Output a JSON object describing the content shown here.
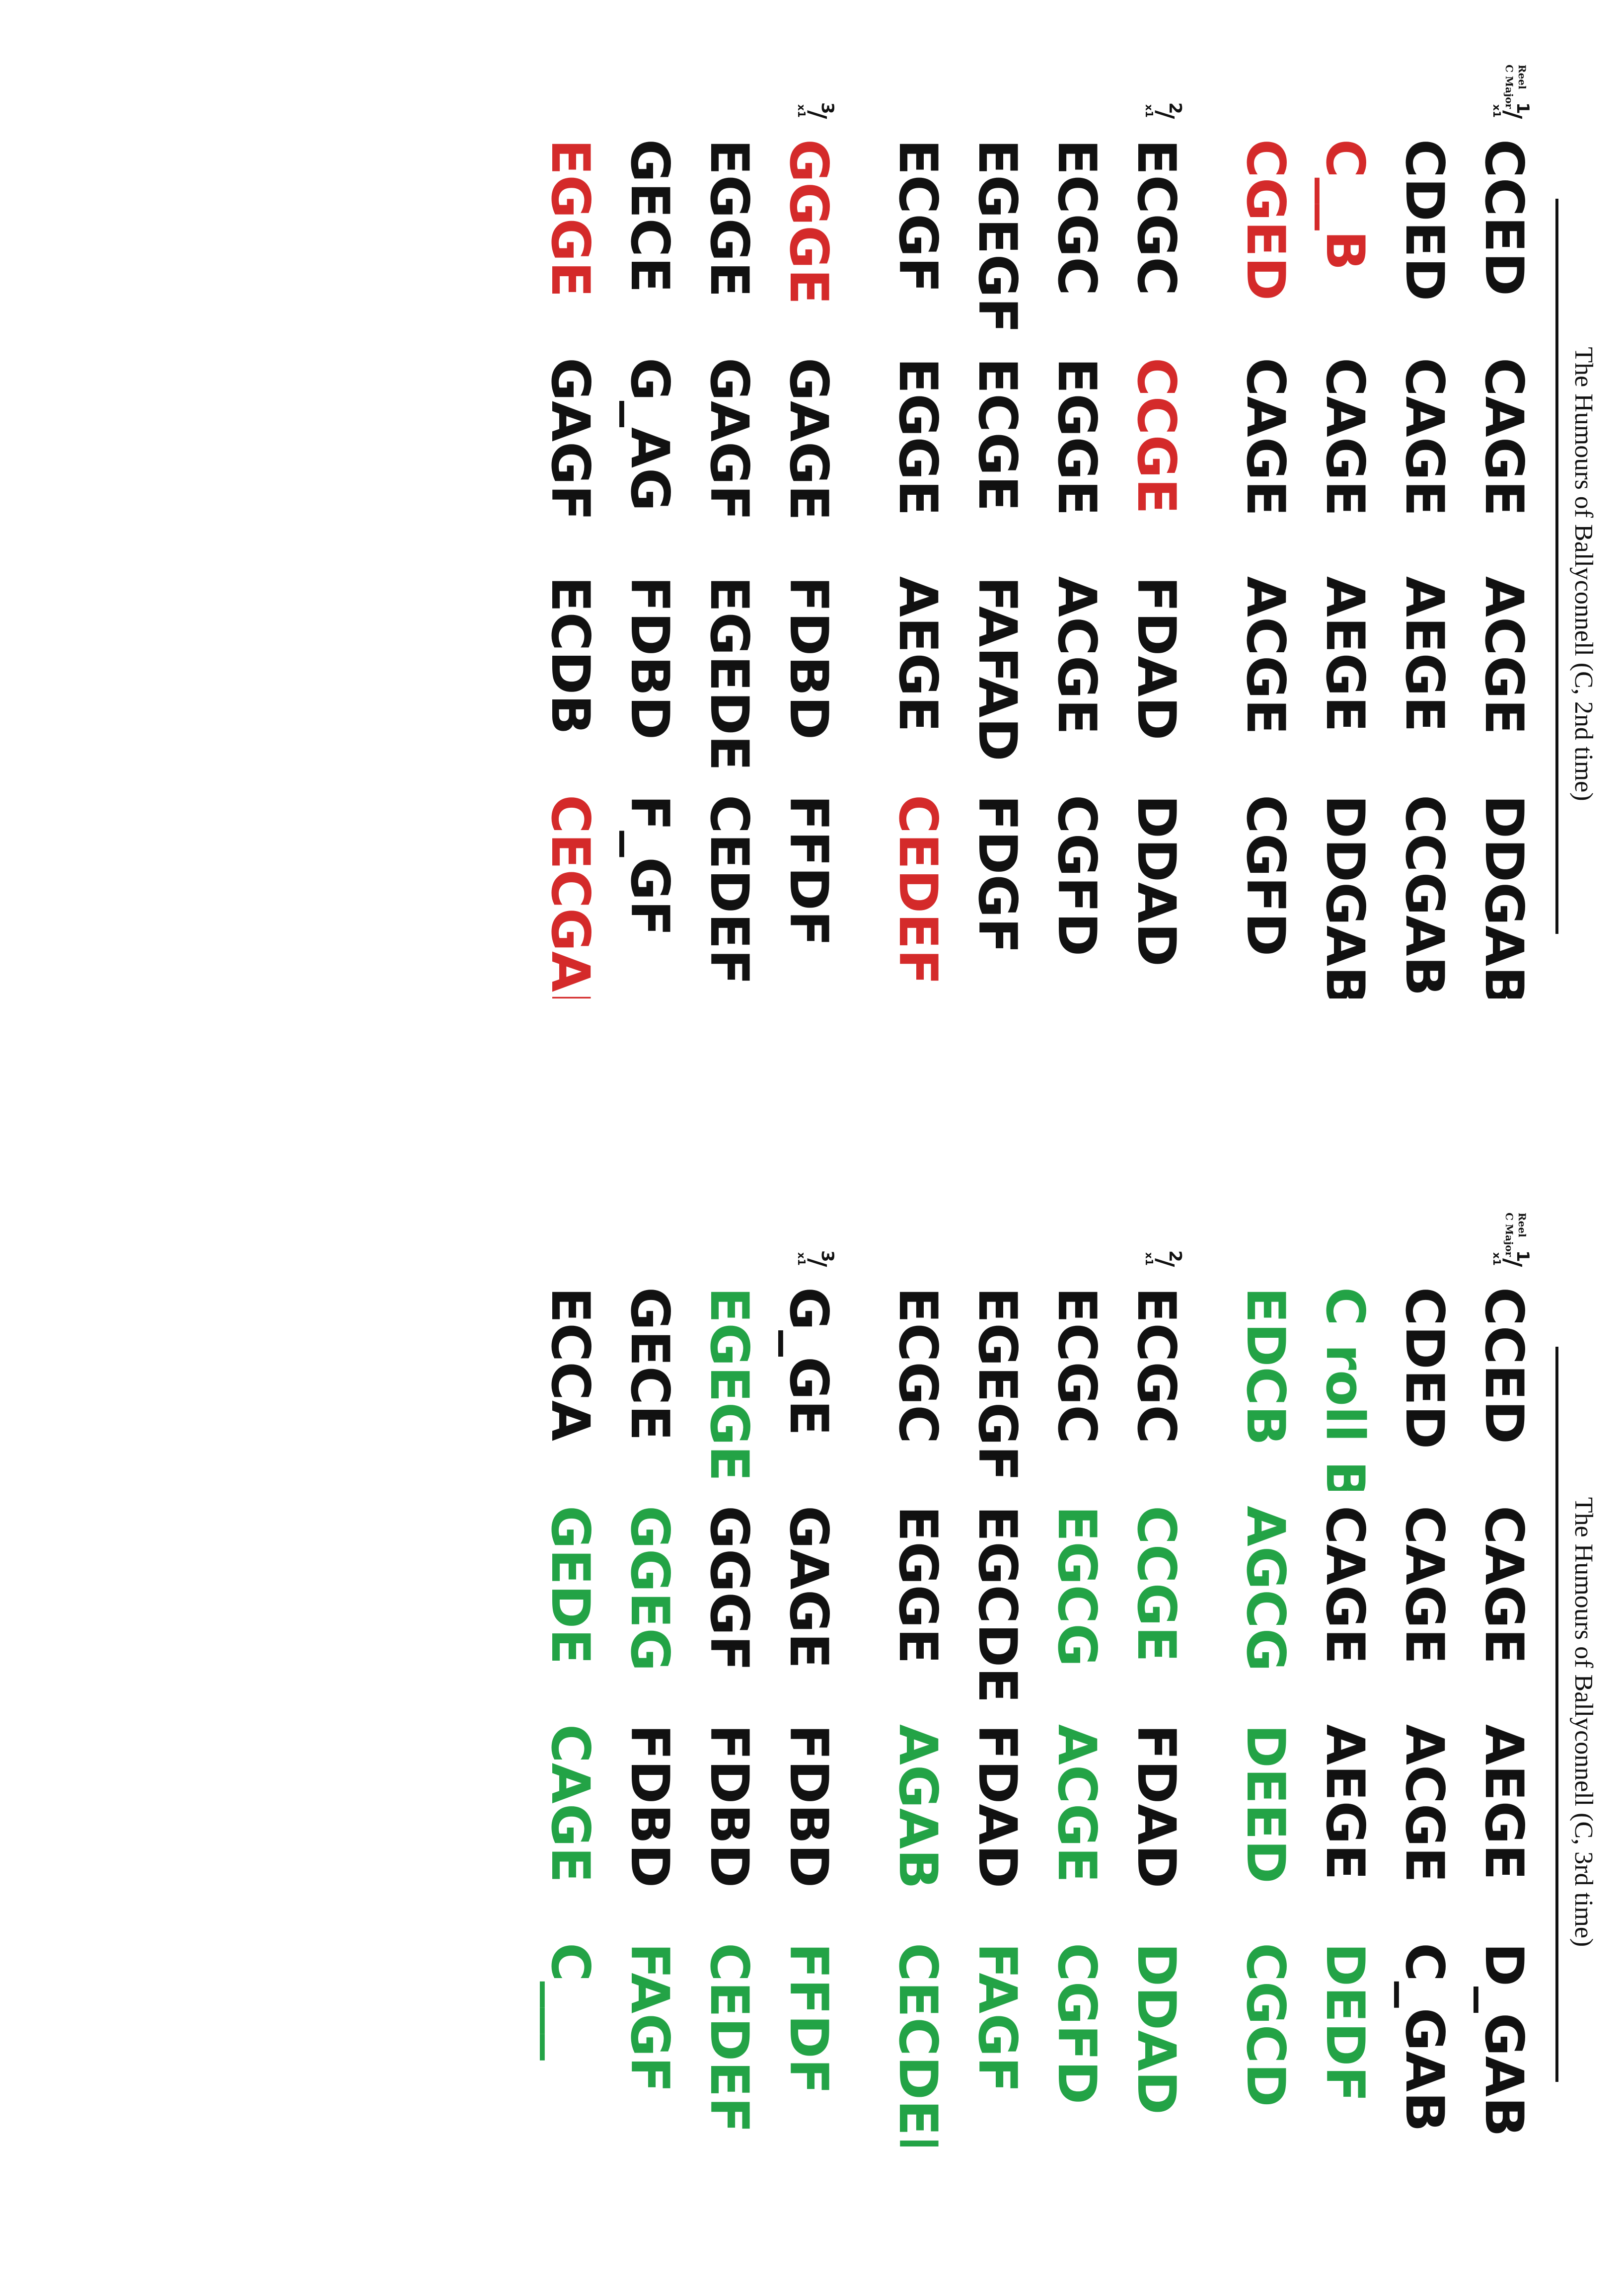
{
  "sheets": [
    {
      "title": "The Humours of Ballyconnell (C, 2nd time)",
      "tune_type": "Reel",
      "key": "C Major",
      "parts": [
        {
          "number": "1",
          "repeat": "x1",
          "rows": [
            [
              "CCED",
              "CAGE",
              "ACGE",
              "DDGAB"
            ],
            [
              "CDED",
              "CAGE",
              "AEGE",
              "CCGAB"
            ],
            [
              "C__B",
              "CAGE",
              "AEGE",
              "DDGAB"
            ],
            [
              "CGED",
              "CAGE",
              "ACGE",
              "CGFD"
            ]
          ]
        },
        {
          "number": "2",
          "repeat": "x1",
          "rows": [
            [
              "ECGC",
              "CCGE",
              "FDAD",
              "DDAD"
            ],
            [
              "ECGC",
              "EGGE",
              "ACGE",
              "CGFD"
            ],
            [
              "EGEGF",
              "ECGE",
              "FAFAD",
              "FDGF"
            ],
            [
              "ECGF",
              "EGGE",
              "AEGE",
              "CEDEF"
            ]
          ]
        },
        {
          "number": "3",
          "repeat": "x1",
          "rows": [
            [
              "GGGE",
              "GAGE",
              "FDBD",
              "FFDF"
            ],
            [
              "EGGE",
              "GAGF",
              "EGEDE",
              "CEDEF"
            ],
            [
              "GECE",
              "G_AG",
              "FDBD",
              "F_GF"
            ],
            [
              "EGGE",
              "GAGF",
              "ECDB",
              "CECGAB"
            ]
          ]
        }
      ]
    },
    {
      "title": "The Humours of Ballyconnell (C, 3rd time)",
      "tune_type": "Reel",
      "key": "C Major",
      "parts": [
        {
          "number": "1",
          "repeat": "x1",
          "rows": [
            [
              "CCED",
              "CAGE",
              "AEGE",
              "D_GAB"
            ],
            [
              "CDED",
              "CAGE",
              "ACGE",
              "C_GAB"
            ],
            [
              "C roll B",
              "CAGE",
              "AEGE",
              "DEDF"
            ],
            [
              "EDCB",
              "AGCG",
              "DEED",
              "CGCD"
            ]
          ]
        },
        {
          "number": "2",
          "repeat": "x1",
          "rows": [
            [
              "ECGC",
              "CCGE",
              "FDAD",
              "DDAD"
            ],
            [
              "ECGC",
              "EGCG",
              "ACGE",
              "CGFD"
            ],
            [
              "EGEGF",
              "EGCDE",
              "FDAD",
              "FAGF"
            ],
            [
              "ECGC",
              "EGGE",
              "AGAB",
              "CECDEF"
            ]
          ]
        },
        {
          "number": "3",
          "repeat": "x1",
          "rows": [
            [
              "G_GE",
              "GAGE",
              "FDBD",
              "FFDF"
            ],
            [
              "EGEGE",
              "GGGF",
              "FDBD",
              "CEDEF"
            ],
            [
              "GECE",
              "GGEG",
              "FDBD",
              "FAGF"
            ],
            [
              "ECCA",
              "GEDE",
              "CAGE",
              "C___"
            ]
          ]
        }
      ]
    }
  ],
  "colors": {
    "ink": "#111111",
    "red_highlight": "#d42a2a",
    "green_highlight": "#23a346"
  },
  "highlights": [
    [
      "k",
      "k",
      "k",
      "k",
      "k",
      "k",
      "k",
      "k",
      "r",
      "k",
      "k",
      "k",
      "r",
      "k",
      "k",
      "k",
      "k",
      "r",
      "k",
      "k",
      "k",
      "k",
      "k",
      "k",
      "k",
      "k",
      "k",
      "k",
      "k",
      "k",
      "k",
      "r",
      "r",
      "k",
      "k",
      "k",
      "k",
      "k",
      "k",
      "k",
      "k",
      "k",
      "k",
      "k",
      "r",
      "k",
      "k",
      "r"
    ],
    [
      "k",
      "k",
      "k",
      "k",
      "k",
      "k",
      "k",
      "k",
      "g",
      "k",
      "k",
      "g",
      "g",
      "g",
      "g",
      "g",
      "k",
      "g",
      "k",
      "g",
      "k",
      "g",
      "g",
      "g",
      "k",
      "k",
      "k",
      "g",
      "k",
      "k",
      "g",
      "g",
      "k",
      "k",
      "k",
      "g",
      "g",
      "k",
      "k",
      "g",
      "k",
      "g",
      "k",
      "g",
      "k",
      "g",
      "g",
      "g"
    ]
  ]
}
